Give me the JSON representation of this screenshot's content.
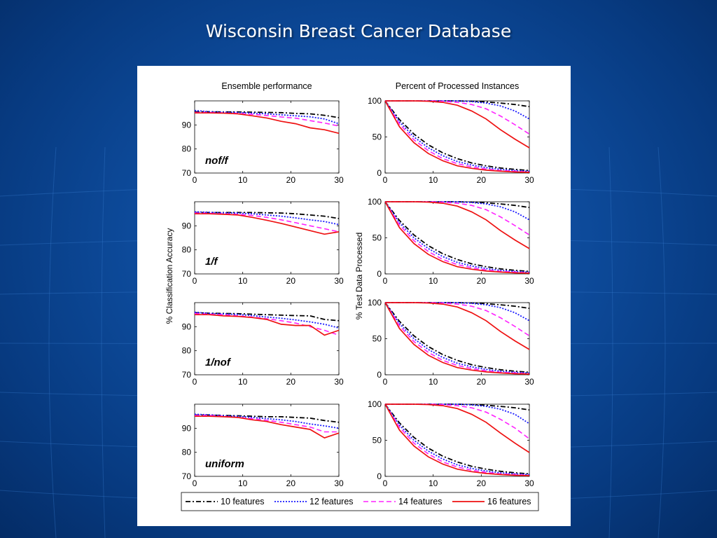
{
  "slide": {
    "title": "Wisconsin Breast Cancer Database"
  },
  "colors": {
    "background": "#0d4a9a",
    "10 features": "#000000",
    "12 features": "#1a1aff",
    "14 features": "#ff22ff",
    "16 features": "#ee1111"
  },
  "chart_data": [
    {
      "type": "line",
      "title": "Ensemble performance",
      "label": "nof/f",
      "ylabel": "% Classification Accuracy",
      "xlim": [
        0,
        30
      ],
      "ylim": [
        70,
        100
      ],
      "xticks": [
        0,
        10,
        20,
        30
      ],
      "yticks": [
        70,
        80,
        90
      ],
      "x": [
        0,
        3,
        6,
        9,
        12,
        15,
        18,
        21,
        24,
        27,
        30
      ],
      "series": [
        {
          "name": "10 features",
          "values": [
            95.5,
            95.5,
            95.4,
            95.4,
            95.3,
            95.2,
            95.1,
            94.8,
            94.6,
            94.0,
            93.0
          ]
        },
        {
          "name": "12 features",
          "values": [
            96.0,
            95.5,
            95.3,
            95.2,
            94.9,
            94.6,
            94.2,
            93.8,
            93.4,
            92.5,
            90.5
          ]
        },
        {
          "name": "14 features",
          "values": [
            95.2,
            95.2,
            95.0,
            94.8,
            94.4,
            93.9,
            93.3,
            92.8,
            91.8,
            90.8,
            89.5
          ]
        },
        {
          "name": "16 features",
          "values": [
            95.0,
            95.0,
            94.9,
            94.6,
            93.8,
            92.9,
            91.5,
            90.5,
            88.8,
            88.0,
            86.5
          ]
        }
      ]
    },
    {
      "type": "line",
      "title": "Percent of Processed Instances",
      "xlim": [
        0,
        30
      ],
      "ylim": [
        0,
        100
      ],
      "xticks": [
        0,
        10,
        20,
        30
      ],
      "yticks": [
        0,
        50,
        100
      ],
      "x": [
        0,
        3,
        6,
        9,
        12,
        15,
        18,
        21,
        24,
        27,
        30
      ],
      "series": [
        {
          "name": "10 features",
          "values": [
            100,
            100,
            100,
            100,
            100,
            100,
            99.5,
            98.5,
            97,
            95,
            92
          ]
        },
        {
          "name": "12 features",
          "values": [
            100,
            100,
            100,
            100,
            100,
            100,
            99,
            97,
            93,
            86,
            75
          ]
        },
        {
          "name": "14 features",
          "values": [
            100,
            100,
            100,
            100,
            99.5,
            98,
            95,
            89,
            79,
            67,
            54
          ]
        },
        {
          "name": "16 features",
          "values": [
            100,
            100,
            100,
            99.5,
            98,
            94,
            86,
            75,
            60,
            47,
            35
          ]
        },
        {
          "name": "10 features",
          "values": [
            100,
            74,
            54,
            39,
            28,
            20,
            14,
            10,
            7,
            5,
            3.5
          ]
        },
        {
          "name": "12 features",
          "values": [
            100,
            71,
            50,
            35,
            24,
            16,
            11,
            7.5,
            5,
            3.5,
            2.5
          ]
        },
        {
          "name": "14 features",
          "values": [
            100,
            68,
            46,
            31,
            20,
            13,
            8.5,
            5.5,
            3.5,
            2.5,
            1.5
          ]
        },
        {
          "name": "16 features",
          "values": [
            100,
            64,
            42,
            27,
            17,
            10,
            6.5,
            4,
            2.5,
            1.5,
            1
          ]
        }
      ]
    },
    {
      "type": "line",
      "label": "1/f",
      "xlim": [
        0,
        30
      ],
      "ylim": [
        70,
        100
      ],
      "xticks": [
        0,
        10,
        20,
        30
      ],
      "yticks": [
        70,
        80,
        90
      ],
      "x": [
        0,
        3,
        6,
        9,
        12,
        15,
        18,
        21,
        24,
        27,
        30
      ],
      "series": [
        {
          "name": "10 features",
          "values": [
            95.5,
            95.5,
            95.5,
            95.5,
            95.5,
            95.4,
            95.3,
            95.0,
            94.5,
            94.0,
            93.0
          ]
        },
        {
          "name": "12 features",
          "values": [
            95.8,
            95.6,
            95.4,
            95.3,
            95.0,
            94.5,
            94.0,
            93.3,
            92.5,
            91.8,
            90.5
          ]
        },
        {
          "name": "14 features",
          "values": [
            95.3,
            95.2,
            95.0,
            94.8,
            94.3,
            93.5,
            92.5,
            91.3,
            90.0,
            88.8,
            87.5
          ]
        },
        {
          "name": "16 features",
          "values": [
            95.0,
            95.0,
            94.8,
            94.5,
            93.5,
            92.3,
            91.0,
            89.5,
            88.0,
            86.5,
            87.5
          ]
        }
      ]
    },
    {
      "type": "line",
      "ylabel": "% Test Data Processed",
      "xlim": [
        0,
        30
      ],
      "ylim": [
        0,
        100
      ],
      "xticks": [
        0,
        10,
        20,
        30
      ],
      "yticks": [
        0,
        50,
        100
      ],
      "x": [
        0,
        3,
        6,
        9,
        12,
        15,
        18,
        21,
        24,
        27,
        30
      ],
      "series": [
        {
          "name": "10 features",
          "values": [
            100,
            100,
            100,
            100,
            100,
            100,
            99.5,
            98.5,
            97,
            95,
            92
          ]
        },
        {
          "name": "12 features",
          "values": [
            100,
            100,
            100,
            100,
            100,
            100,
            99,
            97,
            93,
            86,
            75
          ]
        },
        {
          "name": "14 features",
          "values": [
            100,
            100,
            100,
            100,
            99.5,
            98,
            95,
            89,
            79,
            67,
            54
          ]
        },
        {
          "name": "16 features",
          "values": [
            100,
            100,
            100,
            99.5,
            98,
            94,
            86,
            75,
            60,
            47,
            35
          ]
        },
        {
          "name": "10 features",
          "values": [
            100,
            74,
            54,
            39,
            28,
            20,
            14,
            10,
            7,
            5,
            3.5
          ]
        },
        {
          "name": "12 features",
          "values": [
            100,
            71,
            50,
            35,
            24,
            16,
            11,
            7.5,
            5,
            3.5,
            2.5
          ]
        },
        {
          "name": "14 features",
          "values": [
            100,
            68,
            46,
            31,
            20,
            13,
            8.5,
            5.5,
            3.5,
            2.5,
            1.5
          ]
        },
        {
          "name": "16 features",
          "values": [
            100,
            64,
            42,
            27,
            17,
            10,
            6.5,
            4,
            2.5,
            1.5,
            1
          ]
        }
      ]
    },
    {
      "type": "line",
      "label": "1/nof",
      "xlim": [
        0,
        30
      ],
      "ylim": [
        70,
        100
      ],
      "xticks": [
        0,
        10,
        20,
        30
      ],
      "yticks": [
        70,
        80,
        90
      ],
      "x": [
        0,
        3,
        6,
        9,
        12,
        15,
        18,
        21,
        24,
        27,
        30
      ],
      "series": [
        {
          "name": "10 features",
          "values": [
            95.8,
            95.6,
            95.5,
            95.4,
            95.2,
            95.0,
            94.8,
            94.6,
            94.5,
            93.0,
            92.5
          ]
        },
        {
          "name": "12 features",
          "values": [
            96.0,
            95.5,
            95.3,
            95.1,
            94.6,
            94.0,
            93.5,
            92.8,
            92.0,
            91.0,
            89.5
          ]
        },
        {
          "name": "14 features",
          "values": [
            95.5,
            95.2,
            95.0,
            94.5,
            94.0,
            93.3,
            92.5,
            91.5,
            90.0,
            88.5,
            86.5
          ]
        },
        {
          "name": "16 features",
          "values": [
            95.0,
            95.0,
            94.5,
            94.3,
            93.8,
            93.0,
            91.0,
            90.5,
            90.5,
            86.5,
            88.5
          ]
        }
      ]
    },
    {
      "type": "line",
      "xlim": [
        0,
        30
      ],
      "ylim": [
        0,
        100
      ],
      "xticks": [
        0,
        10,
        20,
        30
      ],
      "yticks": [
        0,
        50,
        100
      ],
      "x": [
        0,
        3,
        6,
        9,
        12,
        15,
        18,
        21,
        24,
        27,
        30
      ],
      "series": [
        {
          "name": "10 features",
          "values": [
            100,
            100,
            100,
            100,
            100,
            100,
            99.5,
            98.5,
            97,
            95,
            92
          ]
        },
        {
          "name": "12 features",
          "values": [
            100,
            100,
            100,
            100,
            100,
            100,
            99,
            97,
            93,
            86,
            75
          ]
        },
        {
          "name": "14 features",
          "values": [
            100,
            100,
            100,
            100,
            99.5,
            98,
            95,
            89,
            79,
            67,
            54
          ]
        },
        {
          "name": "16 features",
          "values": [
            100,
            100,
            100,
            99.5,
            98,
            94,
            86,
            75,
            60,
            47,
            35
          ]
        },
        {
          "name": "10 features",
          "values": [
            100,
            74,
            54,
            39,
            28,
            20,
            14,
            10,
            7,
            5,
            3.5
          ]
        },
        {
          "name": "12 features",
          "values": [
            100,
            71,
            50,
            35,
            24,
            16,
            11,
            7.5,
            5,
            3.5,
            2.5
          ]
        },
        {
          "name": "14 features",
          "values": [
            100,
            68,
            46,
            31,
            20,
            13,
            8.5,
            5.5,
            3.5,
            2.5,
            1.5
          ]
        },
        {
          "name": "16 features",
          "values": [
            100,
            64,
            42,
            27,
            17,
            10,
            6.5,
            4,
            2.5,
            1.5,
            1
          ]
        }
      ]
    },
    {
      "type": "line",
      "label": "uniform",
      "xlim": [
        0,
        30
      ],
      "ylim": [
        70,
        100
      ],
      "xticks": [
        0,
        10,
        20,
        30
      ],
      "yticks": [
        70,
        80,
        90
      ],
      "x": [
        0,
        3,
        6,
        9,
        12,
        15,
        18,
        21,
        24,
        27,
        30
      ],
      "series": [
        {
          "name": "10 features",
          "values": [
            95.5,
            95.5,
            95.3,
            95.2,
            95.0,
            94.8,
            94.8,
            94.5,
            94.2,
            93.2,
            92.5
          ]
        },
        {
          "name": "12 features",
          "values": [
            95.8,
            95.6,
            95.2,
            95.0,
            94.5,
            94.0,
            93.5,
            92.8,
            91.8,
            91.0,
            90.0
          ]
        },
        {
          "name": "14 features",
          "values": [
            95.3,
            95.3,
            95.0,
            94.5,
            94.0,
            93.3,
            92.5,
            91.5,
            90.5,
            88.5,
            88.5
          ]
        },
        {
          "name": "16 features",
          "values": [
            95.0,
            95.0,
            94.8,
            94.5,
            93.5,
            92.8,
            91.5,
            90.5,
            89.5,
            86.0,
            88.0
          ]
        }
      ]
    },
    {
      "type": "line",
      "xlim": [
        0,
        30
      ],
      "ylim": [
        0,
        100
      ],
      "xticks": [
        0,
        10,
        20,
        30
      ],
      "yticks": [
        0,
        50,
        100
      ],
      "x": [
        0,
        3,
        6,
        9,
        12,
        15,
        18,
        21,
        24,
        27,
        30
      ],
      "series": [
        {
          "name": "10 features",
          "values": [
            100,
            100,
            100,
            100,
            100,
            100,
            99.5,
            98.5,
            97,
            95,
            92
          ]
        },
        {
          "name": "12 features",
          "values": [
            100,
            100,
            100,
            100,
            100,
            100,
            99,
            97,
            93,
            86,
            73
          ]
        },
        {
          "name": "14 features",
          "values": [
            100,
            100,
            100,
            100,
            99.5,
            98,
            95,
            89,
            79,
            67,
            52
          ]
        },
        {
          "name": "16 features",
          "values": [
            100,
            100,
            100,
            99.5,
            98,
            94,
            86,
            75,
            60,
            46,
            33
          ]
        },
        {
          "name": "10 features",
          "values": [
            100,
            74,
            54,
            39,
            28,
            20,
            14,
            10,
            7,
            5,
            3.5
          ]
        },
        {
          "name": "12 features",
          "values": [
            100,
            71,
            50,
            35,
            24,
            16,
            11,
            7.5,
            5,
            3.5,
            2.5
          ]
        },
        {
          "name": "14 features",
          "values": [
            100,
            68,
            46,
            31,
            20,
            13,
            8.5,
            5.5,
            3.5,
            2.5,
            1.5
          ]
        },
        {
          "name": "16 features",
          "values": [
            100,
            64,
            42,
            27,
            17,
            10,
            6.5,
            4,
            2.5,
            1.5,
            1
          ]
        }
      ]
    }
  ],
  "legend": {
    "items": [
      "10 features",
      "12 features",
      "14 features",
      "16 features"
    ]
  }
}
